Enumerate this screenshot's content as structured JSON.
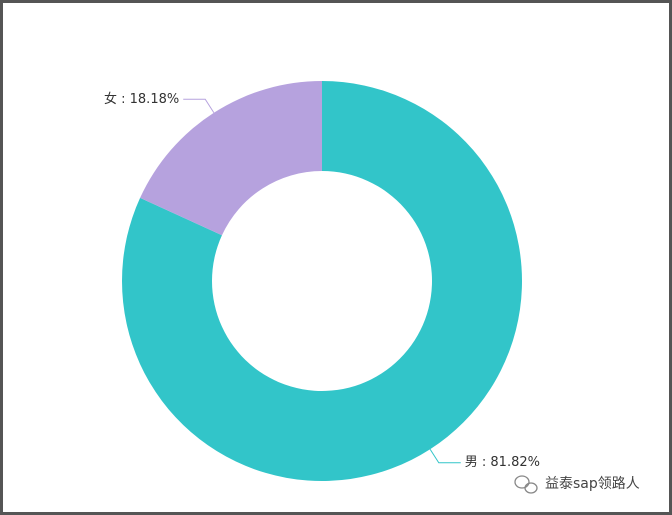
{
  "chart_data": {
    "type": "donut",
    "categories": [
      "男",
      "女"
    ],
    "values": [
      81.82,
      18.18
    ],
    "value_labels": [
      "男 : 81.82%",
      "女 : 18.18%"
    ],
    "colors": [
      "#32c5c9",
      "#b6a2de"
    ],
    "watermark": "益泰sap领路人"
  }
}
